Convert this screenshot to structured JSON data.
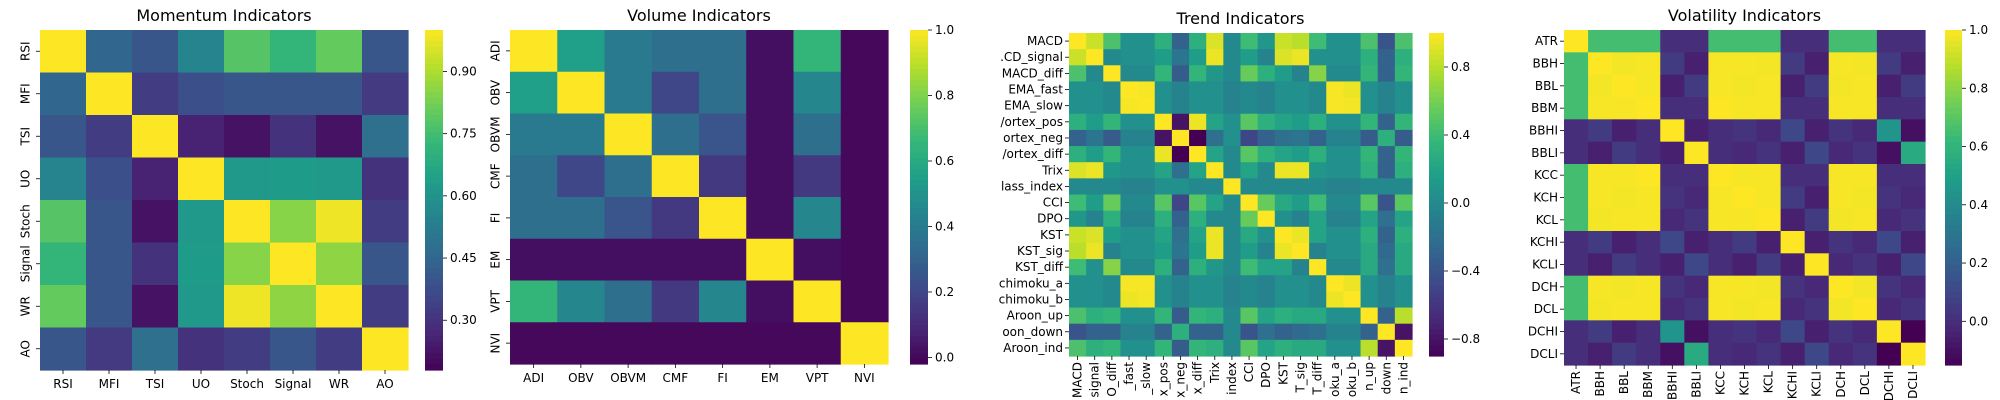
{
  "colormap": [
    "#440154",
    "#482878",
    "#3e4989",
    "#31688e",
    "#26828e",
    "#1f9e89",
    "#35b779",
    "#6ece58",
    "#b5de2b",
    "#fde725"
  ],
  "chart_data": [
    {
      "type": "heatmap",
      "title": "Momentum Indicators",
      "labels": [
        "RSI",
        "MFI",
        "TSI",
        "UO",
        "Stoch",
        "Signal",
        "WR",
        "AO"
      ],
      "row_labels_display": [
        "RSI",
        "MFI",
        "TSI",
        "UO",
        "Stoch",
        "Signal",
        "WR",
        "AO"
      ],
      "col_labels_display": [
        "RSI",
        "MFI",
        "TSI",
        "UO",
        "Stoch",
        "Signal",
        "WR",
        "AO"
      ],
      "vmin": 0.18,
      "vmax": 1.0,
      "colorbar_ticks": [
        0.3,
        0.45,
        0.6,
        0.75,
        0.9
      ],
      "colorbar_tick_labels": [
        "0.30",
        "0.45",
        "0.60",
        "0.75",
        "0.90"
      ],
      "values": [
        [
          1.0,
          0.45,
          0.4,
          0.55,
          0.78,
          0.72,
          0.8,
          0.4
        ],
        [
          0.45,
          1.0,
          0.33,
          0.38,
          0.4,
          0.4,
          0.4,
          0.32
        ],
        [
          0.4,
          0.33,
          1.0,
          0.26,
          0.22,
          0.3,
          0.22,
          0.48
        ],
        [
          0.55,
          0.38,
          0.26,
          1.0,
          0.62,
          0.63,
          0.62,
          0.3
        ],
        [
          0.78,
          0.4,
          0.22,
          0.62,
          1.0,
          0.85,
          0.98,
          0.33
        ],
        [
          0.72,
          0.4,
          0.3,
          0.63,
          0.85,
          1.0,
          0.86,
          0.4
        ],
        [
          0.8,
          0.4,
          0.22,
          0.62,
          0.98,
          0.86,
          1.0,
          0.33
        ],
        [
          0.4,
          0.32,
          0.48,
          0.3,
          0.33,
          0.4,
          0.33,
          1.0
        ]
      ]
    },
    {
      "type": "heatmap",
      "title": "Volume Indicators",
      "labels": [
        "ADI",
        "OBV",
        "OBVM",
        "CMF",
        "FI",
        "EM",
        "VPT",
        "NVI"
      ],
      "row_labels_display": [
        "ADI",
        "OBV",
        "OBVM",
        "CMF",
        "FI",
        "EM",
        "VPT",
        "NVI"
      ],
      "col_labels_display": [
        "ADI",
        "OBV",
        "OBVM",
        "CMF",
        "FI",
        "EM",
        "VPT",
        "NVI"
      ],
      "vmin": -0.02,
      "vmax": 1.0,
      "colorbar_ticks": [
        0.0,
        0.2,
        0.4,
        0.6,
        0.8,
        1.0
      ],
      "colorbar_tick_labels": [
        "0.0",
        "0.2",
        "0.4",
        "0.6",
        "0.8",
        "1.0"
      ],
      "values": [
        [
          1.0,
          0.55,
          0.4,
          0.35,
          0.35,
          0.02,
          0.65,
          0.0
        ],
        [
          0.55,
          1.0,
          0.4,
          0.2,
          0.35,
          0.02,
          0.45,
          0.0
        ],
        [
          0.4,
          0.4,
          1.0,
          0.35,
          0.25,
          0.02,
          0.35,
          0.0
        ],
        [
          0.35,
          0.2,
          0.35,
          1.0,
          0.15,
          0.02,
          0.15,
          0.0
        ],
        [
          0.35,
          0.35,
          0.25,
          0.15,
          1.0,
          0.02,
          0.45,
          0.0
        ],
        [
          0.02,
          0.02,
          0.02,
          0.02,
          0.02,
          1.0,
          0.02,
          0.0
        ],
        [
          0.65,
          0.45,
          0.35,
          0.15,
          0.45,
          0.02,
          1.0,
          0.0
        ],
        [
          0.0,
          0.0,
          0.0,
          0.0,
          0.0,
          0.0,
          0.0,
          1.0
        ]
      ]
    },
    {
      "type": "heatmap",
      "title": "Trend Indicators",
      "labels": [
        "MACD",
        "MACD_signal",
        "MACD_diff",
        "EMA_fast",
        "EMA_slow",
        "Vortex_pos",
        "Vortex_neg",
        "Vortex_diff",
        "Trix",
        "Mass_index",
        "CCI",
        "DPO",
        "KST",
        "KST_sig",
        "KST_diff",
        "Ichimoku_a",
        "Ichimoku_b",
        "Aroon_up",
        "Aroon_down",
        "Aroon_ind"
      ],
      "row_labels_display": [
        "MACD",
        ".CD_signal",
        "MACD_diff",
        "EMA_fast",
        "EMA_slow",
        "/ortex_pos",
        "ortex_neg",
        "/ortex_diff",
        "Trix",
        "lass_index",
        "CCI",
        "DPO",
        "KST",
        "KST_sig",
        "KST_diff",
        "chimoku_a",
        "chimoku_b",
        "Aroon_up",
        "oon_down",
        "Aroon_ind"
      ],
      "col_labels_display": [
        "MACD",
        "signal",
        "O_diff",
        "_fast",
        "_slow",
        "x_pos",
        "x_neg",
        "x_diff",
        "Trix",
        "index",
        "CCI",
        "DPO",
        "KST",
        "T_sig",
        "T_diff",
        "oku_a",
        "oku_b",
        "n_up",
        "down",
        "n_ind"
      ],
      "vmin": -0.9,
      "vmax": 1.0,
      "colorbar_ticks": [
        -0.8,
        -0.4,
        0.0,
        0.4,
        0.8
      ],
      "colorbar_tick_labels": [
        "−0.8",
        "−0.4",
        "0.0",
        "0.4",
        "0.8"
      ],
      "values": [
        [
          1.0,
          0.85,
          0.45,
          0.05,
          0.05,
          0.3,
          -0.3,
          0.3,
          0.9,
          0.0,
          0.4,
          0.1,
          0.85,
          0.8,
          0.4,
          0.05,
          0.05,
          0.45,
          -0.4,
          0.45
        ],
        [
          0.85,
          1.0,
          0.0,
          0.05,
          0.05,
          0.15,
          -0.15,
          0.15,
          0.95,
          0.0,
          0.15,
          -0.05,
          0.9,
          0.95,
          0.05,
          0.05,
          0.05,
          0.3,
          -0.3,
          0.3
        ],
        [
          0.45,
          0.0,
          1.0,
          0.0,
          0.0,
          0.35,
          -0.35,
          0.35,
          0.1,
          0.0,
          0.55,
          0.3,
          0.15,
          -0.05,
          0.65,
          0.0,
          0.0,
          0.35,
          -0.3,
          0.35
        ],
        [
          0.05,
          0.05,
          0.0,
          1.0,
          0.98,
          0.05,
          -0.05,
          0.05,
          0.05,
          -0.05,
          0.0,
          -0.05,
          0.05,
          0.05,
          0.0,
          0.98,
          0.95,
          0.05,
          -0.05,
          0.05
        ],
        [
          0.05,
          0.05,
          0.0,
          0.98,
          1.0,
          0.05,
          -0.05,
          0.05,
          0.05,
          -0.05,
          0.0,
          -0.05,
          0.05,
          0.05,
          0.0,
          0.98,
          0.97,
          0.05,
          -0.05,
          0.05
        ],
        [
          0.3,
          0.15,
          0.35,
          0.05,
          0.05,
          1.0,
          -0.8,
          0.95,
          0.2,
          0.05,
          0.5,
          0.3,
          0.2,
          0.15,
          0.3,
          0.05,
          0.05,
          0.35,
          -0.3,
          0.35
        ],
        [
          -0.3,
          -0.15,
          -0.35,
          -0.05,
          -0.05,
          -0.8,
          1.0,
          -0.95,
          -0.2,
          0.05,
          -0.5,
          -0.3,
          -0.2,
          -0.15,
          -0.3,
          -0.05,
          -0.05,
          -0.35,
          0.3,
          -0.35
        ],
        [
          0.3,
          0.15,
          0.35,
          0.05,
          0.05,
          0.95,
          -0.95,
          1.0,
          0.2,
          0.0,
          0.5,
          0.3,
          0.2,
          0.15,
          0.3,
          0.05,
          0.05,
          0.35,
          -0.3,
          0.35
        ],
        [
          0.9,
          0.95,
          0.1,
          0.05,
          0.05,
          0.2,
          -0.2,
          0.2,
          1.0,
          0.0,
          0.2,
          0.0,
          0.95,
          0.95,
          0.1,
          0.05,
          0.05,
          0.3,
          -0.3,
          0.3
        ],
        [
          0.0,
          0.0,
          0.0,
          -0.05,
          -0.05,
          0.05,
          0.05,
          0.0,
          0.0,
          1.0,
          0.0,
          0.0,
          0.0,
          0.0,
          0.0,
          -0.05,
          -0.05,
          0.0,
          0.0,
          0.0
        ],
        [
          0.4,
          0.15,
          0.55,
          0.0,
          0.0,
          0.5,
          -0.5,
          0.5,
          0.2,
          0.0,
          1.0,
          0.55,
          0.25,
          0.15,
          0.4,
          0.0,
          0.0,
          0.5,
          -0.4,
          0.5
        ],
        [
          0.1,
          -0.05,
          0.3,
          -0.05,
          -0.05,
          0.3,
          -0.3,
          0.3,
          0.0,
          0.0,
          0.55,
          1.0,
          0.05,
          -0.05,
          0.2,
          -0.05,
          -0.05,
          0.2,
          -0.2,
          0.2
        ],
        [
          0.85,
          0.9,
          0.15,
          0.05,
          0.05,
          0.2,
          -0.2,
          0.2,
          0.95,
          0.0,
          0.25,
          0.05,
          1.0,
          0.95,
          0.2,
          0.05,
          0.05,
          0.3,
          -0.3,
          0.3
        ],
        [
          0.8,
          0.95,
          -0.05,
          0.05,
          0.05,
          0.15,
          -0.15,
          0.15,
          0.95,
          0.0,
          0.15,
          -0.05,
          0.95,
          1.0,
          -0.05,
          0.05,
          0.05,
          0.25,
          -0.25,
          0.25
        ],
        [
          0.4,
          0.05,
          0.65,
          0.0,
          0.0,
          0.3,
          -0.3,
          0.3,
          0.1,
          0.0,
          0.4,
          0.2,
          0.2,
          -0.05,
          1.0,
          0.0,
          0.0,
          0.25,
          -0.2,
          0.25
        ],
        [
          0.05,
          0.05,
          0.0,
          0.98,
          0.98,
          0.05,
          -0.05,
          0.05,
          0.05,
          -0.05,
          0.0,
          -0.05,
          0.05,
          0.05,
          0.0,
          1.0,
          0.95,
          0.05,
          -0.05,
          0.05
        ],
        [
          0.05,
          0.05,
          0.0,
          0.95,
          0.97,
          0.05,
          -0.05,
          0.05,
          0.05,
          -0.05,
          0.0,
          -0.05,
          0.05,
          0.05,
          0.0,
          0.95,
          1.0,
          0.05,
          -0.05,
          0.05
        ],
        [
          0.45,
          0.3,
          0.35,
          0.05,
          0.05,
          0.35,
          -0.35,
          0.35,
          0.3,
          0.0,
          0.5,
          0.2,
          0.3,
          0.25,
          0.25,
          0.05,
          0.05,
          1.0,
          -0.3,
          0.8
        ],
        [
          -0.4,
          -0.3,
          -0.3,
          -0.05,
          -0.05,
          -0.3,
          0.3,
          -0.3,
          -0.3,
          0.0,
          -0.4,
          -0.2,
          -0.3,
          -0.25,
          -0.2,
          -0.05,
          -0.05,
          -0.3,
          1.0,
          -0.8
        ],
        [
          0.45,
          0.3,
          0.35,
          0.05,
          0.05,
          0.35,
          -0.35,
          0.35,
          0.3,
          0.0,
          0.5,
          0.2,
          0.3,
          0.25,
          0.25,
          0.05,
          0.05,
          0.8,
          -0.8,
          1.0
        ]
      ]
    },
    {
      "type": "heatmap",
      "title": "Volatility Indicators",
      "labels": [
        "ATR",
        "BBH",
        "BBL",
        "BBM",
        "BBHI",
        "BBLI",
        "KCC",
        "KCH",
        "KCL",
        "KCHI",
        "KCLI",
        "DCH",
        "DCL",
        "DCHI",
        "DCLI"
      ],
      "row_labels_display": [
        "ATR",
        "BBH",
        "BBL",
        "BBM",
        "BBHI",
        "BBLI",
        "KCC",
        "KCH",
        "KCL",
        "KCHI",
        "KCLI",
        "DCH",
        "DCL",
        "DCHI",
        "DCLI"
      ],
      "col_labels_display": [
        "ATR",
        "BBH",
        "BBL",
        "BBM",
        "BBHI",
        "BBLI",
        "KCC",
        "KCH",
        "KCL",
        "KCHI",
        "KCLI",
        "DCH",
        "DCL",
        "DCHI",
        "DCLI"
      ],
      "vmin": -0.15,
      "vmax": 1.0,
      "colorbar_ticks": [
        0.0,
        0.2,
        0.4,
        0.6,
        0.8,
        1.0
      ],
      "colorbar_tick_labels": [
        "0.0",
        "0.2",
        "0.4",
        "0.6",
        "0.8",
        "1.0"
      ],
      "values": [
        [
          1.0,
          0.65,
          0.65,
          0.65,
          0.0,
          0.0,
          0.65,
          0.65,
          0.65,
          0.0,
          0.0,
          0.65,
          0.65,
          0.0,
          0.0
        ],
        [
          0.65,
          1.0,
          0.98,
          0.99,
          0.05,
          -0.05,
          0.99,
          0.99,
          0.98,
          0.05,
          -0.05,
          0.99,
          0.98,
          0.05,
          -0.05
        ],
        [
          0.65,
          0.98,
          1.0,
          0.99,
          -0.05,
          0.05,
          0.99,
          0.98,
          0.99,
          -0.05,
          0.05,
          0.98,
          0.99,
          -0.05,
          0.05
        ],
        [
          0.65,
          0.99,
          0.99,
          1.0,
          0.0,
          0.0,
          1.0,
          0.99,
          0.99,
          0.0,
          0.0,
          0.99,
          0.99,
          0.0,
          0.0
        ],
        [
          0.0,
          0.05,
          -0.05,
          0.0,
          1.0,
          -0.05,
          0.0,
          0.02,
          -0.02,
          0.1,
          -0.05,
          0.02,
          -0.02,
          0.45,
          -0.1
        ],
        [
          0.0,
          -0.05,
          0.05,
          0.0,
          -0.05,
          1.0,
          0.0,
          -0.02,
          0.02,
          -0.05,
          0.1,
          -0.02,
          0.02,
          -0.1,
          0.55
        ],
        [
          0.65,
          0.99,
          0.99,
          1.0,
          0.0,
          0.0,
          1.0,
          0.99,
          0.99,
          0.0,
          0.0,
          0.99,
          0.99,
          0.0,
          0.0
        ],
        [
          0.65,
          0.99,
          0.98,
          0.99,
          0.02,
          -0.02,
          0.99,
          1.0,
          0.99,
          0.05,
          -0.05,
          0.99,
          0.98,
          0.02,
          -0.02
        ],
        [
          0.65,
          0.98,
          0.99,
          0.99,
          -0.02,
          0.02,
          0.99,
          0.99,
          1.0,
          -0.05,
          0.05,
          0.98,
          0.99,
          -0.02,
          0.02
        ],
        [
          0.0,
          0.05,
          -0.05,
          0.0,
          0.1,
          -0.05,
          0.0,
          0.05,
          -0.05,
          1.0,
          -0.05,
          0.02,
          -0.02,
          0.1,
          -0.05
        ],
        [
          0.0,
          -0.05,
          0.05,
          0.0,
          -0.05,
          0.1,
          0.0,
          -0.05,
          0.05,
          -0.05,
          1.0,
          -0.02,
          0.02,
          -0.05,
          0.1
        ],
        [
          0.65,
          0.99,
          0.98,
          0.99,
          0.02,
          -0.02,
          0.99,
          0.99,
          0.98,
          0.02,
          -0.02,
          1.0,
          0.98,
          0.02,
          -0.02
        ],
        [
          0.65,
          0.98,
          0.99,
          0.99,
          -0.02,
          0.02,
          0.99,
          0.98,
          0.99,
          -0.02,
          0.02,
          0.98,
          1.0,
          -0.02,
          0.02
        ],
        [
          0.0,
          0.05,
          -0.05,
          0.0,
          0.45,
          -0.1,
          0.0,
          0.02,
          -0.02,
          0.1,
          -0.05,
          0.02,
          -0.02,
          1.0,
          -0.15
        ],
        [
          0.0,
          -0.05,
          0.05,
          0.0,
          -0.1,
          0.55,
          0.0,
          -0.02,
          0.02,
          -0.05,
          0.1,
          -0.02,
          0.02,
          -0.15,
          1.0
        ]
      ]
    }
  ]
}
